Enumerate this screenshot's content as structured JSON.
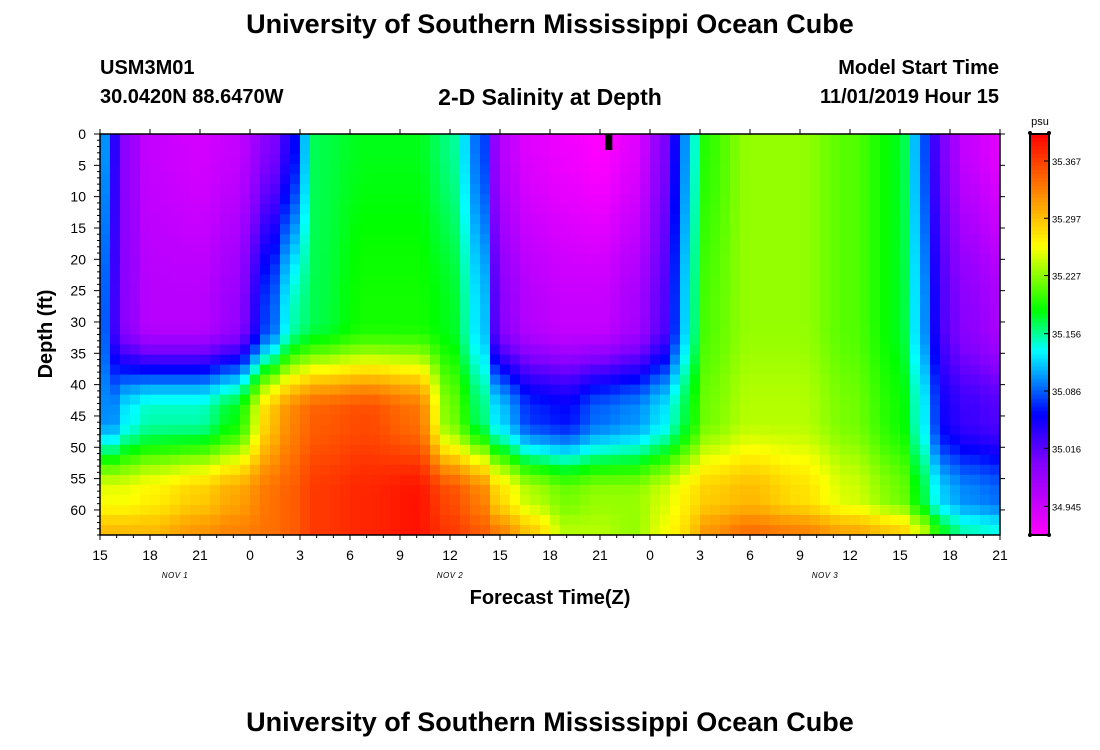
{
  "header": {
    "title": "University of Southern Mississippi Ocean Cube",
    "station_id": "USM3M01",
    "coordinates": "30.0420N 88.6470W",
    "plot_title": "2-D Salinity at Depth",
    "start_label": "Model Start Time",
    "start_time": "11/01/2019 Hour 15"
  },
  "footer": {
    "title": "University of Southern Mississippi Ocean Cube"
  },
  "chart_data": {
    "type": "heatmap",
    "title": "2-D Salinity at Depth",
    "xlabel": "Forecast Time(Z)",
    "ylabel": "Depth (ft)",
    "x_ticks": [
      "15",
      "18",
      "21",
      "0",
      "3",
      "6",
      "9",
      "12",
      "15",
      "18",
      "21",
      "0",
      "3",
      "6",
      "9",
      "12",
      "15",
      "18",
      "21"
    ],
    "x_range_hours": [
      0,
      54
    ],
    "date_labels": [
      {
        "text": "NOV 1",
        "hour": 4.5
      },
      {
        "text": "NOV 2",
        "hour": 21
      },
      {
        "text": "NOV 3",
        "hour": 43.5
      }
    ],
    "y_ticks": [
      0,
      5,
      10,
      15,
      20,
      25,
      30,
      35,
      40,
      45,
      50,
      55,
      60
    ],
    "y_range_ft": [
      0,
      64
    ],
    "colorbar": {
      "unit": "psu",
      "min": 34.91,
      "max": 35.4,
      "ticks": [
        35.367,
        35.297,
        35.227,
        35.156,
        35.086,
        35.016,
        34.945
      ]
    },
    "current_time_marker_hour": 30.5,
    "salinity_profiles": [
      {
        "hour": 0,
        "top": 35.13,
        "d30": 35.11,
        "d45": 35.1,
        "d58": 35.26,
        "bot": 35.3
      },
      {
        "hour": 0.8,
        "top": 35.04,
        "d30": 35.03,
        "d45": 35.1,
        "d58": 35.26,
        "bot": 35.3
      },
      {
        "hour": 1.5,
        "top": 34.99,
        "d30": 34.99,
        "d45": 35.13,
        "d58": 35.26,
        "bot": 35.3
      },
      {
        "hour": 3,
        "top": 34.95,
        "d30": 34.96,
        "d45": 35.15,
        "d58": 35.27,
        "bot": 35.3
      },
      {
        "hour": 6,
        "top": 34.94,
        "d30": 34.96,
        "d45": 35.15,
        "d58": 35.29,
        "bot": 35.32
      },
      {
        "hour": 8,
        "top": 34.95,
        "d30": 34.98,
        "d45": 35.18,
        "d58": 35.31,
        "bot": 35.33
      },
      {
        "hour": 10.5,
        "top": 35.0,
        "d30": 35.09,
        "d45": 35.3,
        "d58": 35.34,
        "bot": 35.34
      },
      {
        "hour": 11.5,
        "top": 35.05,
        "d30": 35.15,
        "d45": 35.33,
        "d58": 35.35,
        "bot": 35.35
      },
      {
        "hour": 13,
        "top": 35.17,
        "d30": 35.17,
        "d45": 35.35,
        "d58": 35.37,
        "bot": 35.37
      },
      {
        "hour": 16,
        "top": 35.18,
        "d30": 35.19,
        "d45": 35.36,
        "d58": 35.38,
        "bot": 35.38
      },
      {
        "hour": 19,
        "top": 35.18,
        "d30": 35.19,
        "d45": 35.34,
        "d58": 35.39,
        "bot": 35.39
      },
      {
        "hour": 21,
        "top": 35.16,
        "d30": 35.18,
        "d45": 35.22,
        "d58": 35.36,
        "bot": 35.37
      },
      {
        "hour": 23,
        "top": 35.08,
        "d30": 35.12,
        "d45": 35.16,
        "d58": 35.33,
        "bot": 35.35
      },
      {
        "hour": 24,
        "top": 34.96,
        "d30": 34.99,
        "d45": 35.12,
        "d58": 35.28,
        "bot": 35.33
      },
      {
        "hour": 26,
        "top": 34.93,
        "d30": 34.96,
        "d45": 35.07,
        "d58": 35.24,
        "bot": 35.29
      },
      {
        "hour": 28,
        "top": 34.92,
        "d30": 34.95,
        "d45": 35.06,
        "d58": 35.22,
        "bot": 35.24
      },
      {
        "hour": 30,
        "top": 34.91,
        "d30": 34.95,
        "d45": 35.09,
        "d58": 35.23,
        "bot": 35.24
      },
      {
        "hour": 32,
        "top": 34.93,
        "d30": 34.97,
        "d45": 35.1,
        "d58": 35.23,
        "bot": 35.23
      },
      {
        "hour": 34,
        "top": 35.0,
        "d30": 35.02,
        "d45": 35.13,
        "d58": 35.25,
        "bot": 35.26
      },
      {
        "hour": 35,
        "top": 35.1,
        "d30": 35.12,
        "d45": 35.17,
        "d58": 35.27,
        "bot": 35.28
      },
      {
        "hour": 36.5,
        "top": 35.2,
        "d30": 35.21,
        "d45": 35.22,
        "d58": 35.29,
        "bot": 35.32
      },
      {
        "hour": 39,
        "top": 35.23,
        "d30": 35.23,
        "d45": 35.24,
        "d58": 35.3,
        "bot": 35.34
      },
      {
        "hour": 42,
        "top": 35.23,
        "d30": 35.23,
        "d45": 35.24,
        "d58": 35.28,
        "bot": 35.33
      },
      {
        "hour": 45,
        "top": 35.21,
        "d30": 35.21,
        "d45": 35.22,
        "d58": 35.25,
        "bot": 35.31
      },
      {
        "hour": 48,
        "top": 35.18,
        "d30": 35.18,
        "d45": 35.19,
        "d58": 35.22,
        "bot": 35.29
      },
      {
        "hour": 49.5,
        "top": 35.08,
        "d30": 35.1,
        "d45": 35.13,
        "d58": 35.17,
        "bot": 35.24
      },
      {
        "hour": 50.5,
        "top": 35.0,
        "d30": 35.02,
        "d45": 35.05,
        "d58": 35.12,
        "bot": 35.18
      },
      {
        "hour": 52,
        "top": 34.95,
        "d30": 34.99,
        "d45": 35.03,
        "d58": 35.1,
        "bot": 35.15
      },
      {
        "hour": 54,
        "top": 34.93,
        "d30": 34.97,
        "d45": 35.02,
        "d58": 35.09,
        "bot": 35.14
      }
    ]
  }
}
